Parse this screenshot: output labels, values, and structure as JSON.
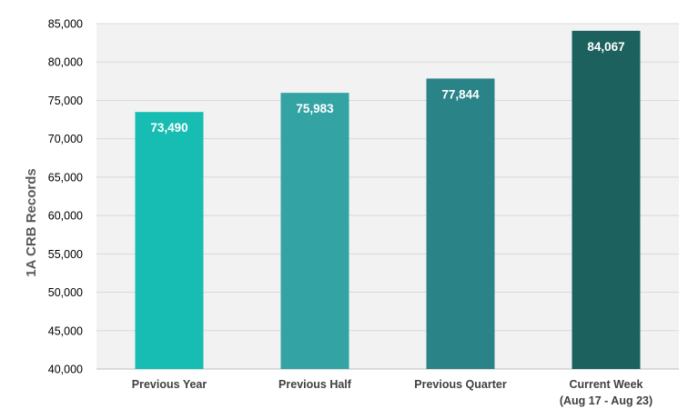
{
  "chart_data": {
    "type": "bar",
    "title": "",
    "xlabel": "",
    "ylabel": "1A CRB Records",
    "ylim": [
      40000,
      85000
    ],
    "ytick_step": 5000,
    "ytick_labels": [
      "40,000",
      "45,000",
      "50,000",
      "55,000",
      "60,000",
      "65,000",
      "70,000",
      "75,000",
      "80,000",
      "85,000"
    ],
    "categories": [
      [
        "Previous Year"
      ],
      [
        "Previous Half"
      ],
      [
        "Previous Quarter"
      ],
      [
        "Current Week",
        "(Aug 17 - Aug 23)"
      ]
    ],
    "values": [
      73490,
      75983,
      77844,
      84067
    ],
    "value_labels": [
      "73,490",
      "75,983",
      "77,844",
      "84,067"
    ],
    "colors": [
      "#17BDB3",
      "#33A3A4",
      "#2A8386",
      "#1D615E"
    ],
    "grid": true,
    "legend": "none"
  }
}
